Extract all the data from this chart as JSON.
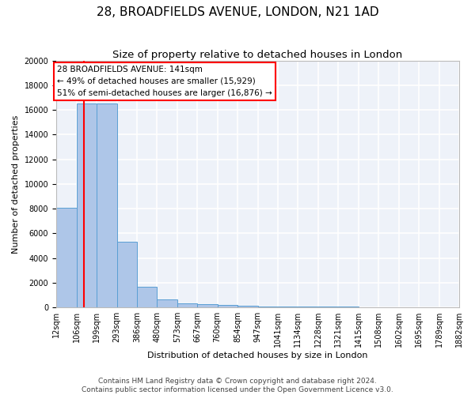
{
  "title": "28, BROADFIELDS AVENUE, LONDON, N21 1AD",
  "subtitle": "Size of property relative to detached houses in London",
  "xlabel": "Distribution of detached houses by size in London",
  "ylabel": "Number of detached properties",
  "bar_edges": [
    12,
    106,
    199,
    293,
    386,
    480,
    573,
    667,
    760,
    854,
    947,
    1041,
    1134,
    1228,
    1321,
    1415,
    1508,
    1602,
    1695,
    1789,
    1882
  ],
  "bar_heights": [
    8100,
    16500,
    16500,
    5300,
    1700,
    650,
    350,
    250,
    180,
    130,
    100,
    80,
    60,
    50,
    40,
    35,
    30,
    25,
    20,
    15
  ],
  "bar_color": "#aec6e8",
  "bar_edge_color": "#5a9fd4",
  "vline_x": 141,
  "vline_color": "red",
  "annotation_text": "28 BROADFIELDS AVENUE: 141sqm\n← 49% of detached houses are smaller (15,929)\n51% of semi-detached houses are larger (16,876) →",
  "annotation_text_color": "black",
  "ylim": [
    0,
    20000
  ],
  "yticks": [
    0,
    2000,
    4000,
    6000,
    8000,
    10000,
    12000,
    14000,
    16000,
    18000,
    20000
  ],
  "tick_labels": [
    "12sqm",
    "106sqm",
    "199sqm",
    "293sqm",
    "386sqm",
    "480sqm",
    "573sqm",
    "667sqm",
    "760sqm",
    "854sqm",
    "947sqm",
    "1041sqm",
    "1134sqm",
    "1228sqm",
    "1321sqm",
    "1415sqm",
    "1508sqm",
    "1602sqm",
    "1695sqm",
    "1789sqm",
    "1882sqm"
  ],
  "footer_line1": "Contains HM Land Registry data © Crown copyright and database right 2024.",
  "footer_line2": "Contains public sector information licensed under the Open Government Licence v3.0.",
  "background_color": "#eef2f9",
  "grid_color": "#ffffff",
  "title_fontsize": 11,
  "subtitle_fontsize": 9.5,
  "axis_label_fontsize": 8,
  "tick_fontsize": 7,
  "footer_fontsize": 6.5,
  "annotation_fontsize": 7.5
}
